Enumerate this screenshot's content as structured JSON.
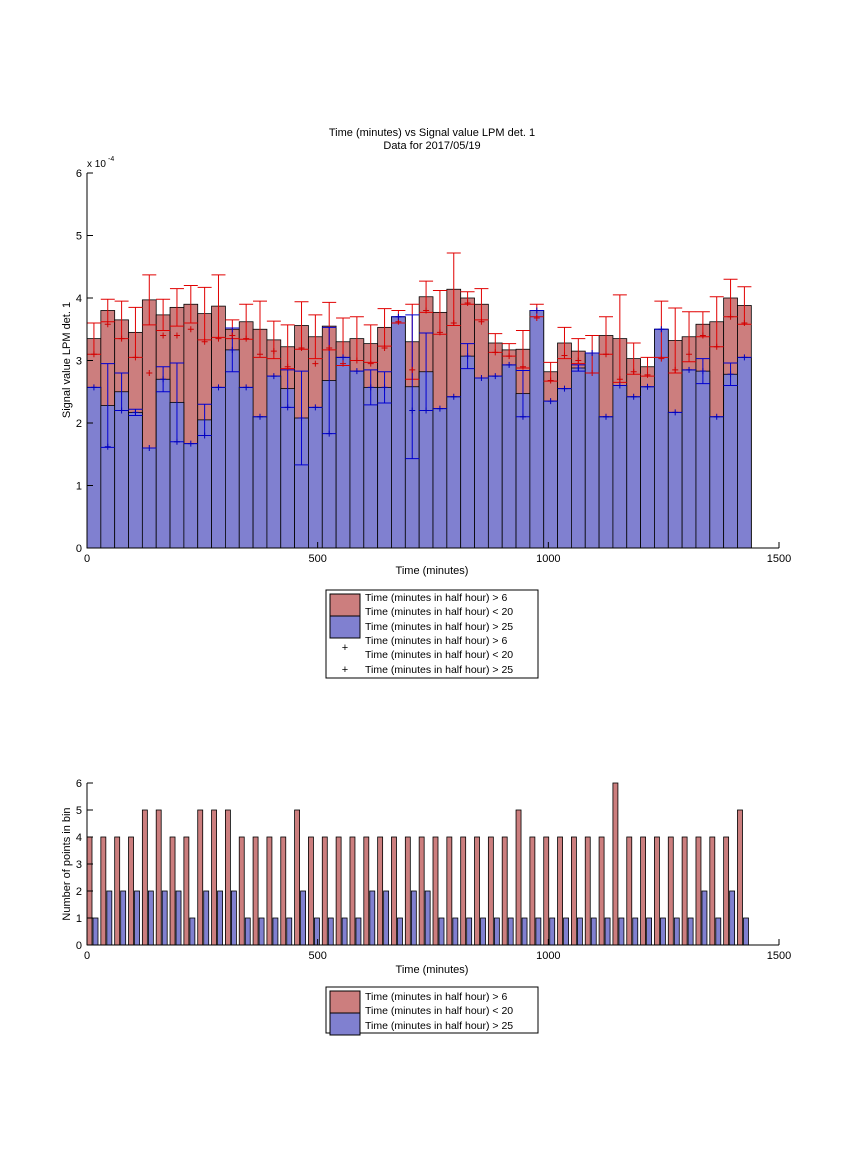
{
  "chart_data": [
    {
      "type": "bar",
      "title": "Time (minutes) vs Signal value LPM det. 1",
      "subtitle": "Data for 2017/05/19",
      "xlabel": "Time (minutes)",
      "ylabel": "Signal value LPM det. 1",
      "y_exponent_label": "x 10",
      "y_exponent_power": "-4",
      "xlim": [
        0,
        1500
      ],
      "ylim": [
        0,
        6
      ],
      "y_scale_note": "values in units of 1e-4",
      "xticks": [
        "0",
        "500",
        "1000",
        "1500"
      ],
      "yticks": [
        "0",
        "1",
        "2",
        "3",
        "4",
        "5",
        "6"
      ],
      "grid": false,
      "bin_width": 30,
      "legend": {
        "position": "below",
        "entries": [
          "Time (minutes in half hour) > 6",
          "Time (minutes in half hour) < 20",
          "Time (minutes in half hour) > 25",
          "Time (minutes in half hour) > 6",
          "Time (minutes in half hour) < 20",
          "Time (minutes in half hour) > 25"
        ]
      },
      "x": [
        15,
        45,
        75,
        105,
        135,
        165,
        195,
        225,
        255,
        285,
        315,
        345,
        375,
        405,
        435,
        465,
        495,
        525,
        555,
        585,
        615,
        645,
        675,
        705,
        735,
        765,
        795,
        825,
        855,
        885,
        915,
        945,
        975,
        1005,
        1035,
        1065,
        1095,
        1125,
        1155,
        1185,
        1215,
        1245,
        1275,
        1305,
        1335,
        1365,
        1395,
        1425
      ],
      "series": [
        {
          "kind": "bar",
          "color": "#cc7e7e",
          "values": [
            3.35,
            3.8,
            3.65,
            3.45,
            3.97,
            3.73,
            3.85,
            3.9,
            3.75,
            3.87,
            3.5,
            3.62,
            3.5,
            3.33,
            3.22,
            3.56,
            3.38,
            3.55,
            3.3,
            3.35,
            3.27,
            3.53,
            3.7,
            3.3,
            4.02,
            3.77,
            4.14,
            4.0,
            3.9,
            3.28,
            3.17,
            3.18,
            3.8,
            2.82,
            3.28,
            3.15,
            3.1,
            3.4,
            3.35,
            3.03,
            2.9,
            3.5,
            3.32,
            3.38,
            3.58,
            3.62,
            4.0,
            3.88
          ],
          "errors": [
            0.25,
            0.18,
            0.3,
            0.4,
            0.4,
            0.25,
            0.3,
            0.3,
            0.42,
            0.5,
            0.15,
            0.28,
            0.45,
            0.3,
            0.35,
            0.38,
            0.35,
            0.38,
            0.38,
            0.35,
            0.3,
            0.3,
            0.1,
            0.6,
            0.25,
            0.35,
            0.58,
            0.1,
            0.25,
            0.15,
            0.1,
            0.3,
            0.1,
            0.15,
            0.25,
            0.2,
            0.3,
            0.3,
            0.7,
            0.25,
            0.15,
            0.45,
            0.52,
            0.4,
            0.2,
            0.4,
            0.3,
            0.3
          ],
          "points": [
            3.1,
            3.58,
            3.35,
            3.05,
            2.8,
            3.4,
            3.4,
            3.5,
            3.3,
            3.35,
            3.4,
            3.35,
            3.1,
            3.15,
            2.9,
            3.2,
            2.95,
            3.2,
            2.95,
            3.0,
            2.95,
            3.2,
            3.62,
            2.85,
            3.8,
            3.45,
            3.6,
            3.92,
            3.62,
            3.13,
            3.07,
            2.9,
            3.68,
            2.68,
            3.08,
            3.0,
            2.8,
            3.1,
            2.7,
            2.82,
            2.77,
            3.03,
            2.85,
            3.1,
            3.4,
            3.22,
            3.7,
            3.6
          ]
        },
        {
          "kind": "bar",
          "color": "#8080d0",
          "values": [
            2.57,
            2.28,
            2.5,
            2.17,
            1.6,
            2.7,
            2.33,
            1.67,
            2.05,
            2.57,
            3.17,
            2.57,
            2.1,
            2.75,
            2.55,
            2.08,
            2.25,
            2.68,
            3.05,
            2.83,
            2.57,
            2.57,
            3.7,
            2.58,
            2.82,
            2.23,
            2.42,
            3.07,
            2.72,
            2.75,
            2.93,
            2.47,
            3.8,
            2.35,
            2.55,
            2.88,
            3.12,
            2.1,
            2.6,
            2.42,
            2.58,
            3.5,
            2.17,
            2.85,
            2.83,
            2.1,
            2.78,
            3.05
          ],
          "errors": [
            0.0,
            0.67,
            0.3,
            0.05,
            0.0,
            0.2,
            0.63,
            0.0,
            0.25,
            0.0,
            0.35,
            0.0,
            0.0,
            0.0,
            0.3,
            0.75,
            0.0,
            0.85,
            0.0,
            0.0,
            0.28,
            0.25,
            0.0,
            1.15,
            0.62,
            0.0,
            0.0,
            0.2,
            0.0,
            0.0,
            0.0,
            0.37,
            0.0,
            0.0,
            0.0,
            0.05,
            0.0,
            0.0,
            0.0,
            0.0,
            0.0,
            0.0,
            0.0,
            0.0,
            0.2,
            0.0,
            0.18,
            0.0
          ],
          "points": [
            2.57,
            1.62,
            2.2,
            2.17,
            1.6,
            2.7,
            1.7,
            1.67,
            1.8,
            2.57,
            3.17,
            2.57,
            2.1,
            2.75,
            2.25,
            2.08,
            2.25,
            1.83,
            3.05,
            2.83,
            2.57,
            2.57,
            3.7,
            2.2,
            2.2,
            2.23,
            2.42,
            3.07,
            2.72,
            2.75,
            2.93,
            2.1,
            3.8,
            2.35,
            2.55,
            2.88,
            3.12,
            2.1,
            2.6,
            2.42,
            2.58,
            3.5,
            2.17,
            2.85,
            2.83,
            2.1,
            2.78,
            3.05
          ]
        }
      ]
    },
    {
      "type": "bar",
      "title": "",
      "xlabel": "Time (minutes)",
      "ylabel": "Number of points in bin",
      "xlim": [
        0,
        1500
      ],
      "ylim": [
        0,
        6
      ],
      "xticks": [
        "0",
        "500",
        "1000",
        "1500"
      ],
      "yticks": [
        "0",
        "1",
        "2",
        "3",
        "4",
        "5",
        "6"
      ],
      "grid": false,
      "legend": {
        "position": "below",
        "entries": [
          "Time (minutes in half hour) > 6",
          "Time (minutes in half hour) < 20",
          "Time (minutes in half hour) > 25"
        ]
      },
      "x": [
        15,
        45,
        75,
        105,
        135,
        165,
        195,
        225,
        255,
        285,
        315,
        345,
        375,
        405,
        435,
        465,
        495,
        525,
        555,
        585,
        615,
        645,
        675,
        705,
        735,
        765,
        795,
        825,
        855,
        885,
        915,
        945,
        975,
        1005,
        1035,
        1065,
        1095,
        1125,
        1155,
        1185,
        1215,
        1245,
        1275,
        1305,
        1335,
        1365,
        1395,
        1425
      ],
      "series": [
        {
          "color": "#cc7e7e",
          "values": [
            4,
            4,
            4,
            4,
            5,
            5,
            4,
            4,
            5,
            5,
            5,
            4,
            4,
            4,
            4,
            5,
            4,
            4,
            4,
            4,
            4,
            4,
            4,
            4,
            4,
            4,
            4,
            4,
            4,
            4,
            4,
            5,
            4,
            4,
            4,
            4,
            4,
            4,
            6,
            4,
            4,
            4,
            4,
            4,
            4,
            4,
            4,
            5
          ]
        },
        {
          "color": "#8080d0",
          "values": [
            1,
            2,
            2,
            2,
            2,
            2,
            2,
            1,
            2,
            2,
            2,
            1,
            1,
            1,
            1,
            2,
            1,
            1,
            1,
            1,
            2,
            2,
            1,
            2,
            2,
            1,
            1,
            1,
            1,
            1,
            1,
            1,
            1,
            1,
            1,
            1,
            1,
            1,
            1,
            1,
            1,
            1,
            1,
            1,
            2,
            1,
            2,
            1
          ]
        }
      ]
    }
  ]
}
